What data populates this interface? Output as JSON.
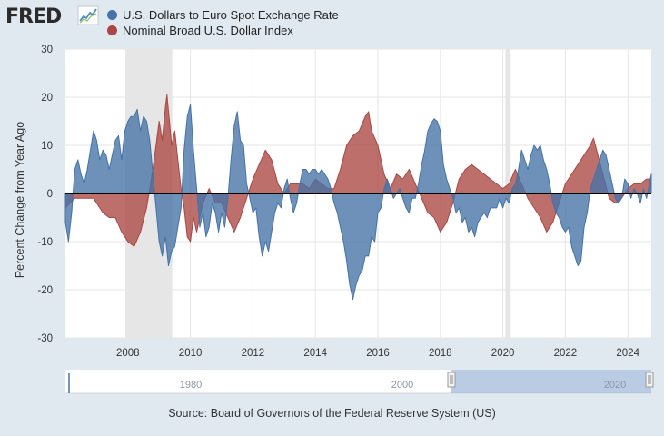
{
  "header": {
    "logo_text": "FRED"
  },
  "chart_data": {
    "type": "area",
    "ylabel": "Percent Change from Year Ago",
    "ylim": [
      -30,
      30
    ],
    "yticks": [
      30,
      20,
      10,
      0,
      -10,
      -20,
      -30
    ],
    "xlim": [
      2006.0,
      2024.75
    ],
    "xticks": [
      2008,
      2010,
      2012,
      2014,
      2016,
      2018,
      2020,
      2022,
      2024
    ],
    "grid": true,
    "legend_position": "top-left",
    "recessions": [
      [
        2007.92,
        2009.42
      ],
      [
        2020.08,
        2020.25
      ]
    ],
    "navigator": {
      "labels": [
        "1980",
        "2000",
        "2020"
      ]
    },
    "series": [
      {
        "name": "U.S. Dollars to Euro Spot Exchange Rate",
        "color": "#4572a7",
        "points": [
          [
            2006.0,
            -6
          ],
          [
            2006.1,
            -10
          ],
          [
            2006.2,
            -4
          ],
          [
            2006.3,
            5
          ],
          [
            2006.4,
            7
          ],
          [
            2006.5,
            4
          ],
          [
            2006.6,
            2
          ],
          [
            2006.7,
            5
          ],
          [
            2006.8,
            9
          ],
          [
            2006.9,
            13
          ],
          [
            2007.0,
            11
          ],
          [
            2007.1,
            7
          ],
          [
            2007.2,
            9
          ],
          [
            2007.3,
            8
          ],
          [
            2007.4,
            5
          ],
          [
            2007.5,
            8
          ],
          [
            2007.6,
            11
          ],
          [
            2007.7,
            12
          ],
          [
            2007.8,
            7
          ],
          [
            2007.9,
            13
          ],
          [
            2008.0,
            15
          ],
          [
            2008.1,
            16
          ],
          [
            2008.2,
            16
          ],
          [
            2008.3,
            17.5
          ],
          [
            2008.4,
            13
          ],
          [
            2008.5,
            16
          ],
          [
            2008.6,
            15
          ],
          [
            2008.7,
            11
          ],
          [
            2008.8,
            4
          ],
          [
            2008.9,
            -3
          ],
          [
            2009.0,
            -10
          ],
          [
            2009.1,
            -13
          ],
          [
            2009.2,
            -9
          ],
          [
            2009.3,
            -15
          ],
          [
            2009.4,
            -12
          ],
          [
            2009.5,
            -11
          ],
          [
            2009.6,
            -7
          ],
          [
            2009.7,
            -3
          ],
          [
            2009.8,
            9
          ],
          [
            2009.9,
            16
          ],
          [
            2010.0,
            18.5
          ],
          [
            2010.1,
            9
          ],
          [
            2010.2,
            1
          ],
          [
            2010.3,
            -7
          ],
          [
            2010.4,
            -4
          ],
          [
            2010.5,
            -9
          ],
          [
            2010.6,
            -7
          ],
          [
            2010.7,
            -2
          ],
          [
            2010.8,
            -4
          ],
          [
            2010.9,
            -8
          ],
          [
            2011.0,
            -4
          ],
          [
            2011.1,
            -7
          ],
          [
            2011.2,
            -1
          ],
          [
            2011.3,
            7
          ],
          [
            2011.4,
            14
          ],
          [
            2011.5,
            17
          ],
          [
            2011.6,
            11
          ],
          [
            2011.7,
            10
          ],
          [
            2011.8,
            2
          ],
          [
            2011.9,
            -1
          ],
          [
            2012.0,
            -4
          ],
          [
            2012.1,
            -3
          ],
          [
            2012.2,
            -9
          ],
          [
            2012.3,
            -13
          ],
          [
            2012.4,
            -10
          ],
          [
            2012.5,
            -12
          ],
          [
            2012.6,
            -8
          ],
          [
            2012.7,
            -4
          ],
          [
            2012.8,
            -2
          ],
          [
            2012.9,
            -3
          ],
          [
            2013.0,
            1
          ],
          [
            2013.1,
            3
          ],
          [
            2013.2,
            -1
          ],
          [
            2013.3,
            -4
          ],
          [
            2013.4,
            -2
          ],
          [
            2013.5,
            2
          ],
          [
            2013.6,
            5
          ],
          [
            2013.7,
            5
          ],
          [
            2013.8,
            4
          ],
          [
            2013.9,
            5
          ],
          [
            2014.0,
            5
          ],
          [
            2014.1,
            4
          ],
          [
            2014.2,
            5
          ],
          [
            2014.3,
            4
          ],
          [
            2014.4,
            3
          ],
          [
            2014.5,
            1
          ],
          [
            2014.6,
            -2
          ],
          [
            2014.7,
            -4
          ],
          [
            2014.8,
            -7
          ],
          [
            2014.9,
            -10
          ],
          [
            2015.0,
            -14
          ],
          [
            2015.1,
            -19
          ],
          [
            2015.2,
            -22
          ],
          [
            2015.3,
            -19
          ],
          [
            2015.4,
            -17
          ],
          [
            2015.5,
            -16
          ],
          [
            2015.6,
            -13
          ],
          [
            2015.7,
            -13
          ],
          [
            2015.8,
            -9
          ],
          [
            2015.9,
            -10
          ],
          [
            2016.0,
            -4
          ],
          [
            2016.1,
            -3
          ],
          [
            2016.2,
            1
          ],
          [
            2016.3,
            3
          ],
          [
            2016.4,
            1
          ],
          [
            2016.5,
            -1
          ],
          [
            2016.6,
            0
          ],
          [
            2016.7,
            1
          ],
          [
            2016.8,
            -1
          ],
          [
            2016.9,
            -3
          ],
          [
            2017.0,
            -4
          ],
          [
            2017.1,
            -1
          ],
          [
            2017.2,
            -1
          ],
          [
            2017.3,
            2
          ],
          [
            2017.4,
            6
          ],
          [
            2017.5,
            9
          ],
          [
            2017.6,
            13
          ],
          [
            2017.7,
            14.5
          ],
          [
            2017.8,
            15.5
          ],
          [
            2017.9,
            15
          ],
          [
            2018.0,
            13
          ],
          [
            2018.1,
            6
          ],
          [
            2018.2,
            3
          ],
          [
            2018.3,
            1
          ],
          [
            2018.4,
            -1
          ],
          [
            2018.5,
            -4
          ],
          [
            2018.6,
            -3
          ],
          [
            2018.7,
            -6
          ],
          [
            2018.8,
            -5
          ],
          [
            2018.9,
            -8
          ],
          [
            2019.0,
            -7
          ],
          [
            2019.1,
            -9
          ],
          [
            2019.2,
            -6
          ],
          [
            2019.3,
            -5
          ],
          [
            2019.4,
            -4
          ],
          [
            2019.5,
            -5
          ],
          [
            2019.6,
            -3
          ],
          [
            2019.7,
            -3
          ],
          [
            2019.8,
            -3
          ],
          [
            2019.9,
            -1
          ],
          [
            2020.0,
            -3
          ],
          [
            2020.1,
            -1
          ],
          [
            2020.2,
            -2
          ],
          [
            2020.3,
            1
          ],
          [
            2020.4,
            2
          ],
          [
            2020.5,
            5
          ],
          [
            2020.6,
            9
          ],
          [
            2020.7,
            7
          ],
          [
            2020.8,
            5
          ],
          [
            2020.9,
            8
          ],
          [
            2021.0,
            10
          ],
          [
            2021.1,
            9
          ],
          [
            2021.2,
            10
          ],
          [
            2021.3,
            7
          ],
          [
            2021.4,
            5
          ],
          [
            2021.5,
            2
          ],
          [
            2021.6,
            -2
          ],
          [
            2021.7,
            -4
          ],
          [
            2021.8,
            -5
          ],
          [
            2021.9,
            -7
          ],
          [
            2022.0,
            -8
          ],
          [
            2022.1,
            -7
          ],
          [
            2022.2,
            -11
          ],
          [
            2022.3,
            -13
          ],
          [
            2022.4,
            -15
          ],
          [
            2022.5,
            -14
          ],
          [
            2022.6,
            -7
          ],
          [
            2022.7,
            -4
          ],
          [
            2022.8,
            1
          ],
          [
            2022.9,
            3
          ],
          [
            2023.0,
            5
          ],
          [
            2023.1,
            7
          ],
          [
            2023.2,
            9
          ],
          [
            2023.3,
            8
          ],
          [
            2023.4,
            5
          ],
          [
            2023.5,
            2
          ],
          [
            2023.6,
            -1
          ],
          [
            2023.7,
            -2
          ],
          [
            2023.8,
            -1
          ],
          [
            2023.9,
            3
          ],
          [
            2024.0,
            2
          ],
          [
            2024.1,
            -1
          ],
          [
            2024.2,
            1
          ],
          [
            2024.3,
            0
          ],
          [
            2024.4,
            -2
          ],
          [
            2024.5,
            1
          ],
          [
            2024.6,
            -1
          ],
          [
            2024.75,
            4
          ]
        ]
      },
      {
        "name": "Nominal Broad U.S. Dollar Index",
        "color": "#aa4643",
        "points": [
          [
            2006.0,
            -3
          ],
          [
            2006.3,
            -1
          ],
          [
            2006.6,
            -1
          ],
          [
            2006.9,
            -1
          ],
          [
            2007.0,
            -2
          ],
          [
            2007.2,
            -4
          ],
          [
            2007.4,
            -5
          ],
          [
            2007.6,
            -5
          ],
          [
            2007.8,
            -8
          ],
          [
            2008.0,
            -10
          ],
          [
            2008.2,
            -11
          ],
          [
            2008.4,
            -8
          ],
          [
            2008.6,
            -3
          ],
          [
            2008.8,
            5
          ],
          [
            2009.0,
            15
          ],
          [
            2009.1,
            11
          ],
          [
            2009.2,
            18
          ],
          [
            2009.25,
            20.5
          ],
          [
            2009.4,
            10
          ],
          [
            2009.5,
            13
          ],
          [
            2009.6,
            7
          ],
          [
            2009.7,
            1
          ],
          [
            2009.8,
            -3
          ],
          [
            2009.9,
            -9
          ],
          [
            2010.0,
            -10
          ],
          [
            2010.1,
            -5
          ],
          [
            2010.2,
            -8
          ],
          [
            2010.4,
            -2
          ],
          [
            2010.6,
            1
          ],
          [
            2010.8,
            -2
          ],
          [
            2011.0,
            -2
          ],
          [
            2011.2,
            -5
          ],
          [
            2011.4,
            -8
          ],
          [
            2011.6,
            -5
          ],
          [
            2011.8,
            -1
          ],
          [
            2012.0,
            3
          ],
          [
            2012.2,
            6
          ],
          [
            2012.4,
            9
          ],
          [
            2012.6,
            7
          ],
          [
            2012.8,
            2
          ],
          [
            2013.0,
            0
          ],
          [
            2013.2,
            2
          ],
          [
            2013.4,
            2
          ],
          [
            2013.6,
            2
          ],
          [
            2013.8,
            1
          ],
          [
            2014.0,
            3
          ],
          [
            2014.2,
            2
          ],
          [
            2014.4,
            1
          ],
          [
            2014.6,
            1
          ],
          [
            2014.8,
            5
          ],
          [
            2015.0,
            10
          ],
          [
            2015.2,
            12
          ],
          [
            2015.4,
            13
          ],
          [
            2015.6,
            16
          ],
          [
            2015.7,
            17
          ],
          [
            2015.8,
            13
          ],
          [
            2016.0,
            10
          ],
          [
            2016.2,
            4
          ],
          [
            2016.4,
            1
          ],
          [
            2016.6,
            4
          ],
          [
            2016.8,
            3
          ],
          [
            2017.0,
            5
          ],
          [
            2017.2,
            2
          ],
          [
            2017.4,
            -1
          ],
          [
            2017.6,
            -4
          ],
          [
            2017.8,
            -5
          ],
          [
            2018.0,
            -8
          ],
          [
            2018.2,
            -6
          ],
          [
            2018.4,
            -2
          ],
          [
            2018.6,
            3
          ],
          [
            2018.8,
            5
          ],
          [
            2019.0,
            6
          ],
          [
            2019.2,
            5
          ],
          [
            2019.4,
            4
          ],
          [
            2019.6,
            3
          ],
          [
            2019.8,
            2
          ],
          [
            2020.0,
            1
          ],
          [
            2020.2,
            2
          ],
          [
            2020.4,
            5
          ],
          [
            2020.6,
            2
          ],
          [
            2020.8,
            -1
          ],
          [
            2021.0,
            -3
          ],
          [
            2021.2,
            -5
          ],
          [
            2021.4,
            -8
          ],
          [
            2021.6,
            -6
          ],
          [
            2021.8,
            -2
          ],
          [
            2022.0,
            2
          ],
          [
            2022.2,
            4
          ],
          [
            2022.4,
            6
          ],
          [
            2022.6,
            8
          ],
          [
            2022.8,
            10
          ],
          [
            2022.9,
            11.5
          ],
          [
            2023.0,
            9
          ],
          [
            2023.2,
            4
          ],
          [
            2023.4,
            -1
          ],
          [
            2023.6,
            -2
          ],
          [
            2023.8,
            -1
          ],
          [
            2024.0,
            1
          ],
          [
            2024.2,
            2
          ],
          [
            2024.4,
            2
          ],
          [
            2024.6,
            3
          ],
          [
            2024.75,
            3
          ]
        ]
      }
    ],
    "source": "Source: Board of Governors of the Federal Reserve System (US)"
  }
}
